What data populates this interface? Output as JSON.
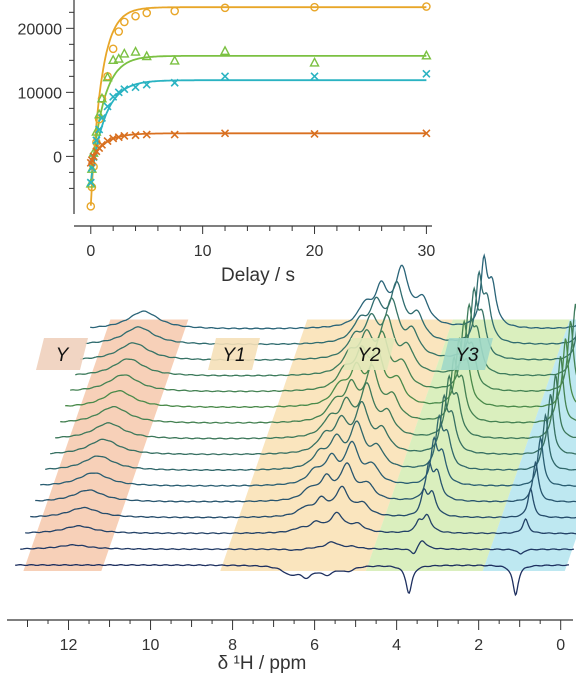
{
  "chart_data": [
    {
      "type": "scatter",
      "title": "",
      "xlabel": "Delay / s",
      "ylabel": "",
      "xlim": [
        -1.5,
        30.5
      ],
      "ylim": [
        -9000,
        23800
      ],
      "xticks": [
        0,
        10,
        20,
        30
      ],
      "yticks": [
        0,
        10000,
        20000
      ],
      "grid": false,
      "series": [
        {
          "name": "",
          "color": "#e8a628",
          "marker": "circle",
          "amplitude": 31000,
          "offset": -7700,
          "rate": 1.05,
          "x": [
            0,
            0.1,
            0.25,
            0.5,
            0.75,
            1,
            1.5,
            2,
            2.5,
            3,
            4,
            5,
            7.5,
            12,
            20,
            30
          ],
          "y": [
            -7800,
            -4800,
            -1600,
            2200,
            5800,
            9000,
            12500,
            16800,
            19500,
            21000,
            21900,
            22400,
            22700,
            23200,
            23300,
            23400
          ]
        },
        {
          "name": "",
          "color": "#7bc142",
          "marker": "triangle",
          "amplitude": 20000,
          "offset": -4300,
          "rate": 0.9,
          "x": [
            0,
            0.1,
            0.25,
            0.5,
            0.75,
            1,
            1.5,
            2,
            2.5,
            3,
            4,
            5,
            7.5,
            12,
            20,
            30
          ],
          "y": [
            -4300,
            -2000,
            500,
            3800,
            6500,
            9000,
            12300,
            15000,
            15200,
            16000,
            16300,
            15600,
            14900,
            16400,
            14600,
            15700
          ]
        },
        {
          "name": "",
          "color": "#2ab3c2",
          "marker": "x",
          "amplitude": 16000,
          "offset": -4100,
          "rate": 0.8,
          "x": [
            0,
            0.1,
            0.25,
            0.5,
            0.75,
            1,
            1.5,
            2,
            2.5,
            3,
            4,
            5,
            7.5,
            12,
            20,
            30
          ],
          "y": [
            -4100,
            -1800,
            -100,
            2500,
            4200,
            6000,
            7800,
            9300,
            10000,
            10500,
            10800,
            11200,
            11500,
            12500,
            12500,
            12900
          ]
        },
        {
          "name": "",
          "color": "#d97020",
          "marker": "x",
          "amplitude": 4600,
          "offset": -1000,
          "rate": 0.85,
          "x": [
            0,
            0.1,
            0.25,
            0.5,
            0.75,
            1,
            1.5,
            2,
            2.5,
            3,
            4,
            5,
            7.5,
            12,
            20,
            30
          ],
          "y": [
            -1000,
            -600,
            0,
            800,
            1300,
            1800,
            2400,
            2800,
            3000,
            3200,
            3300,
            3400,
            3400,
            3600,
            3500,
            3600
          ]
        }
      ]
    },
    {
      "type": "line",
      "title": "",
      "xlabel": "δ ¹H / ppm",
      "ylabel": "",
      "xlim": [
        13.5,
        -0.3
      ],
      "xticks": [
        12,
        10,
        8,
        6,
        4,
        2,
        0
      ],
      "reversed_x": true,
      "grid": false,
      "n_spectra": 16,
      "line_colors_first_to_last": [
        "#1e3060",
        "#2a5e72",
        "#4a8a4a",
        "#2a6478"
      ],
      "regions": [
        {
          "label": "Y",
          "ppm_range": [
            13.1,
            11.2
          ],
          "color": "#f4c0a0",
          "label_color": "#f0d0bc"
        },
        {
          "label": "Y1",
          "ppm_range": [
            8.3,
            4.75
          ],
          "color": "#f8dca8",
          "label_color": "#f5e0b8"
        },
        {
          "label": "Y2",
          "ppm_range": [
            4.75,
            1.9
          ],
          "color": "#cdeaa8",
          "label_color": "#e2e8b8"
        },
        {
          "label": "Y3",
          "ppm_range": [
            1.9,
            -0.1
          ],
          "color": "#a8e0ec",
          "label_color": "#a0d8c8"
        }
      ],
      "peaks": [
        {
          "ppm": 12.0,
          "height_first": 0,
          "height_last": 18,
          "width": 0.45
        },
        {
          "ppm": 6.6,
          "height_first": -8,
          "height_last": 20,
          "width": 0.22
        },
        {
          "ppm": 6.2,
          "height_first": -10,
          "height_last": 35,
          "width": 0.18
        },
        {
          "ppm": 5.7,
          "height_first": -8,
          "height_last": 55,
          "width": 0.2
        },
        {
          "ppm": 5.2,
          "height_first": -5,
          "height_last": 25,
          "width": 0.2
        },
        {
          "ppm": 3.7,
          "height_first": -28,
          "height_last": 62,
          "width": 0.09
        },
        {
          "ppm": 3.5,
          "height_first": 0,
          "height_last": 40,
          "width": 0.12
        },
        {
          "ppm": 1.1,
          "height_first": -30,
          "height_last": 75,
          "width": 0.08
        }
      ]
    }
  ]
}
